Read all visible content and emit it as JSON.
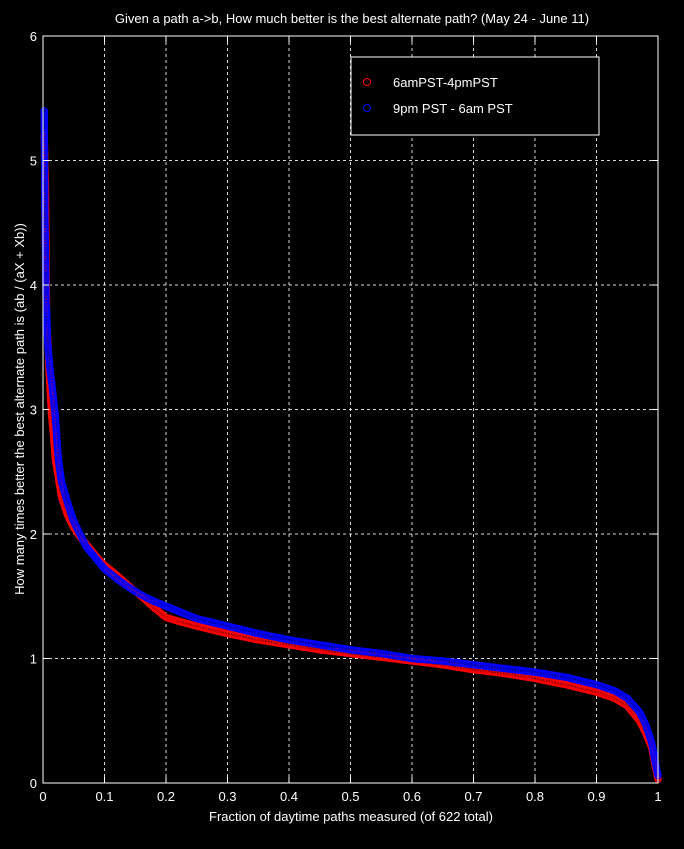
{
  "chart_data": {
    "type": "scatter",
    "title": "Given a path a->b, How much better is the best alternate path? (May 24 - June 11)",
    "xlabel": "Fraction of daytime paths measured (of 622 total)",
    "ylabel": "How many times better the best alternate path is (ab / (aX + Xb))",
    "xlim": [
      0,
      1
    ],
    "ylim": [
      0,
      6
    ],
    "xticks": [
      0,
      0.1,
      0.2,
      0.3,
      0.4,
      0.5,
      0.6,
      0.7,
      0.8,
      0.9,
      1
    ],
    "yticks": [
      0,
      1,
      2,
      3,
      4,
      5,
      6
    ],
    "xtick_labels": [
      "0",
      "0.1",
      "0.2",
      "0.3",
      "0.4",
      "0.5",
      "0.6",
      "0.7",
      "0.8",
      "0.9",
      "1"
    ],
    "ytick_labels": [
      "0",
      "1",
      "2",
      "3",
      "4",
      "5",
      "6"
    ],
    "grid": true,
    "legend_position": "top-right",
    "series": [
      {
        "name": "6amPST-4pmPST",
        "color": "#ff0000",
        "marker": "circle-open",
        "points": [
          [
            0.002,
            5.2
          ],
          [
            0.003,
            5.0
          ],
          [
            0.004,
            4.78
          ],
          [
            0.006,
            3.68
          ],
          [
            0.008,
            3.55
          ],
          [
            0.01,
            3.3
          ],
          [
            0.012,
            3.12
          ],
          [
            0.014,
            2.95
          ],
          [
            0.017,
            2.8
          ],
          [
            0.02,
            2.6
          ],
          [
            0.025,
            2.45
          ],
          [
            0.03,
            2.3
          ],
          [
            0.04,
            2.15
          ],
          [
            0.05,
            2.05
          ],
          [
            0.06,
            1.98
          ],
          [
            0.07,
            1.92
          ],
          [
            0.08,
            1.86
          ],
          [
            0.09,
            1.8
          ],
          [
            0.1,
            1.75
          ],
          [
            0.12,
            1.67
          ],
          [
            0.14,
            1.58
          ],
          [
            0.16,
            1.5
          ],
          [
            0.18,
            1.41
          ],
          [
            0.2,
            1.33
          ],
          [
            0.22,
            1.3
          ],
          [
            0.25,
            1.26
          ],
          [
            0.3,
            1.2
          ],
          [
            0.35,
            1.15
          ],
          [
            0.4,
            1.11
          ],
          [
            0.45,
            1.07
          ],
          [
            0.5,
            1.04
          ],
          [
            0.55,
            1.01
          ],
          [
            0.6,
            0.98
          ],
          [
            0.65,
            0.95
          ],
          [
            0.7,
            0.91
          ],
          [
            0.75,
            0.88
          ],
          [
            0.8,
            0.84
          ],
          [
            0.85,
            0.79
          ],
          [
            0.9,
            0.73
          ],
          [
            0.93,
            0.68
          ],
          [
            0.95,
            0.62
          ],
          [
            0.97,
            0.5
          ],
          [
            0.98,
            0.4
          ],
          [
            0.99,
            0.28
          ],
          [
            0.995,
            0.15
          ],
          [
            1.0,
            0.03
          ]
        ]
      },
      {
        "name": "9pm PST - 6am PST",
        "color": "#0000ff",
        "marker": "circle-open",
        "points": [
          [
            0.002,
            5.4
          ],
          [
            0.003,
            4.6
          ],
          [
            0.004,
            4.25
          ],
          [
            0.005,
            3.85
          ],
          [
            0.006,
            3.78
          ],
          [
            0.007,
            3.6
          ],
          [
            0.009,
            3.45
          ],
          [
            0.012,
            3.3
          ],
          [
            0.015,
            3.18
          ],
          [
            0.02,
            2.95
          ],
          [
            0.025,
            2.6
          ],
          [
            0.03,
            2.42
          ],
          [
            0.04,
            2.25
          ],
          [
            0.05,
            2.1
          ],
          [
            0.06,
            2.0
          ],
          [
            0.07,
            1.9
          ],
          [
            0.08,
            1.84
          ],
          [
            0.09,
            1.78
          ],
          [
            0.1,
            1.72
          ],
          [
            0.12,
            1.64
          ],
          [
            0.14,
            1.57
          ],
          [
            0.16,
            1.51
          ],
          [
            0.18,
            1.46
          ],
          [
            0.2,
            1.42
          ],
          [
            0.22,
            1.38
          ],
          [
            0.25,
            1.32
          ],
          [
            0.3,
            1.26
          ],
          [
            0.35,
            1.2
          ],
          [
            0.4,
            1.15
          ],
          [
            0.45,
            1.11
          ],
          [
            0.5,
            1.07
          ],
          [
            0.55,
            1.04
          ],
          [
            0.6,
            1.0
          ],
          [
            0.65,
            0.98
          ],
          [
            0.7,
            0.95
          ],
          [
            0.75,
            0.92
          ],
          [
            0.8,
            0.89
          ],
          [
            0.85,
            0.85
          ],
          [
            0.9,
            0.79
          ],
          [
            0.93,
            0.74
          ],
          [
            0.95,
            0.68
          ],
          [
            0.97,
            0.57
          ],
          [
            0.98,
            0.47
          ],
          [
            0.99,
            0.32
          ],
          [
            0.995,
            0.18
          ],
          [
            1.0,
            0.06
          ]
        ]
      }
    ]
  }
}
